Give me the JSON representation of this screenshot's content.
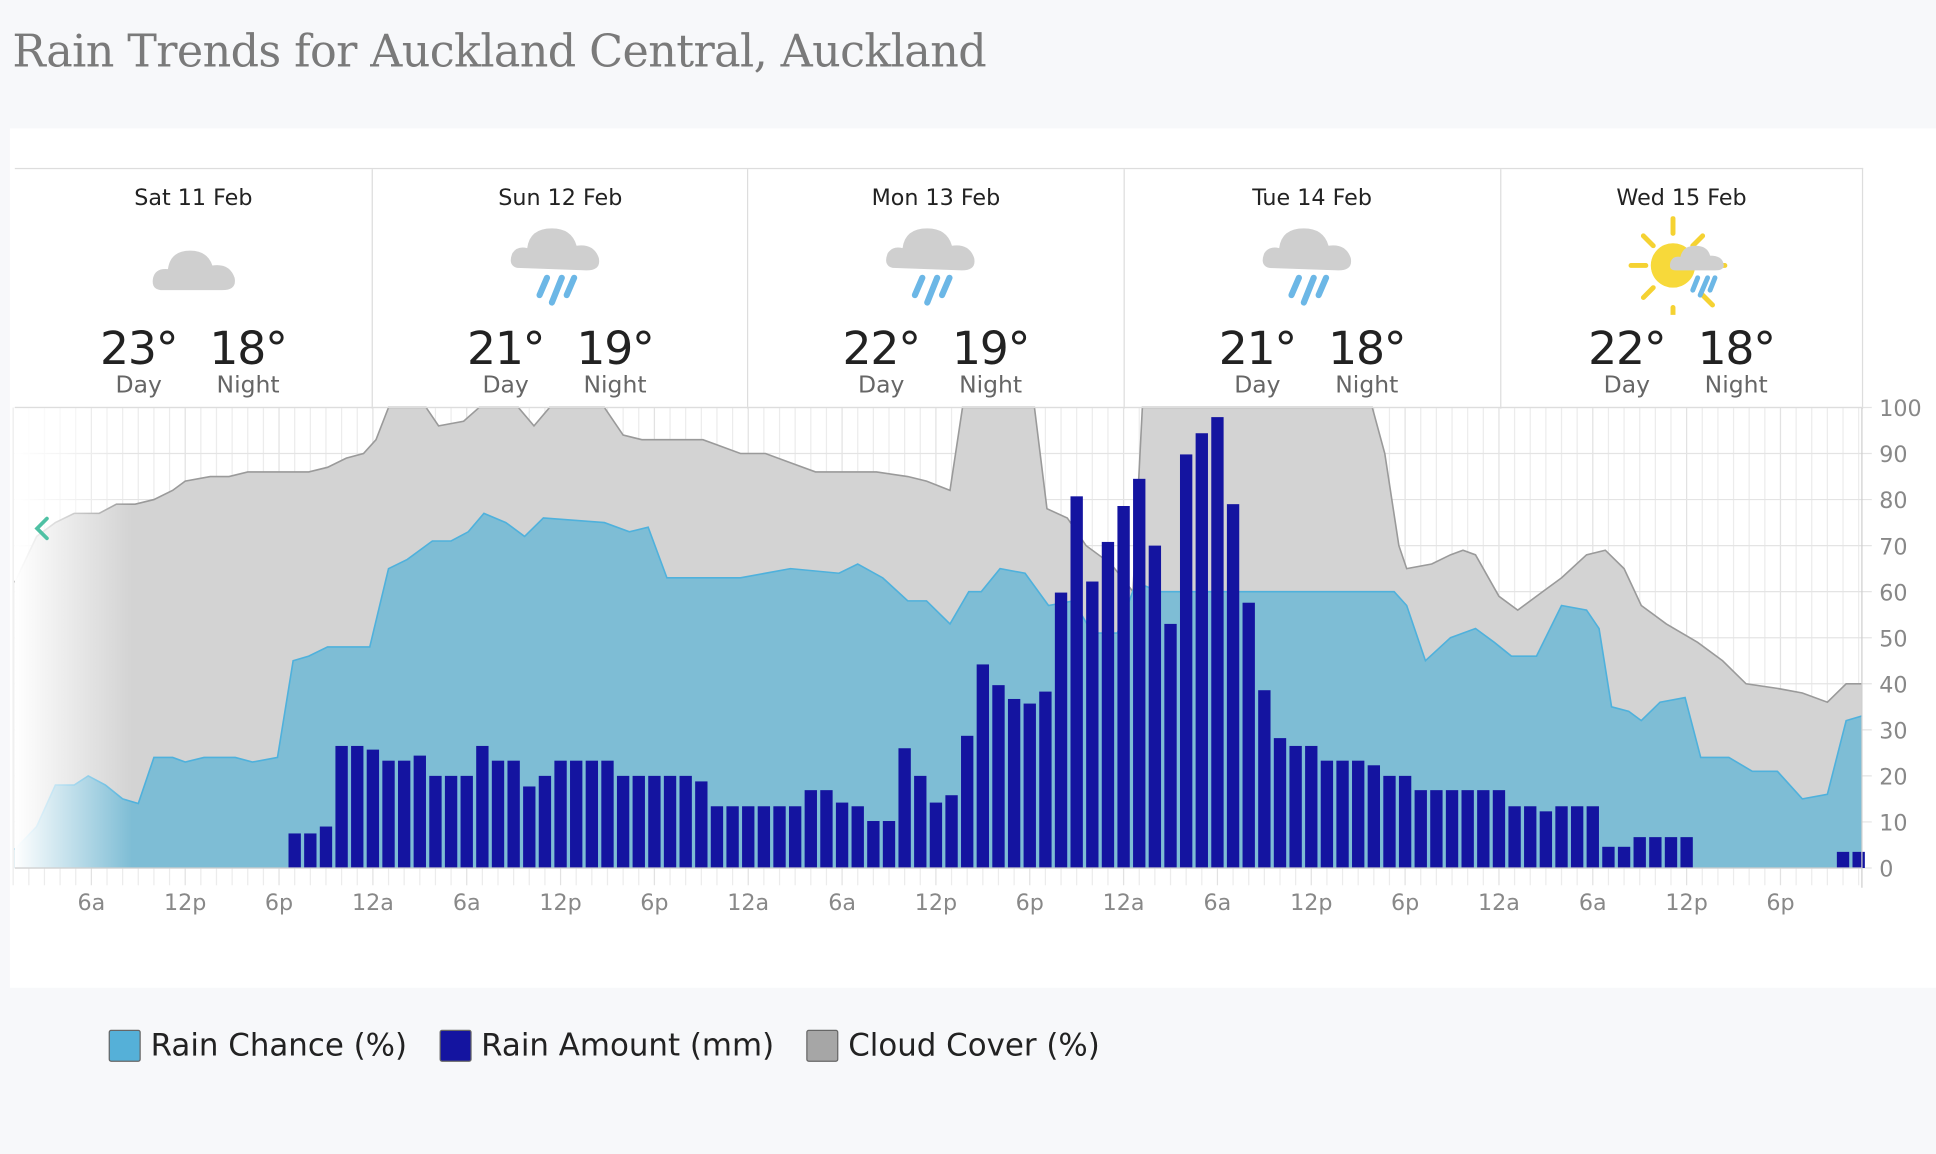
{
  "title": "Rain Trends for Auckland Central, Auckland",
  "days": [
    {
      "name": "Sat 11 Feb",
      "icon": "cloud-icon",
      "day_temp": "23°",
      "night_temp": "18°",
      "day_label": "Day",
      "night_label": "Night"
    },
    {
      "name": "Sun 12 Feb",
      "icon": "cloud-rain-icon",
      "day_temp": "21°",
      "night_temp": "19°",
      "day_label": "Day",
      "night_label": "Night"
    },
    {
      "name": "Mon 13 Feb",
      "icon": "cloud-rain-icon",
      "day_temp": "22°",
      "night_temp": "19°",
      "day_label": "Day",
      "night_label": "Night"
    },
    {
      "name": "Tue 14 Feb",
      "icon": "cloud-rain-icon",
      "day_temp": "21°",
      "night_temp": "18°",
      "day_label": "Day",
      "night_label": "Night"
    },
    {
      "name": "Wed 15 Feb",
      "icon": "sun-cloud-rain-icon",
      "day_temp": "22°",
      "night_temp": "18°",
      "day_label": "Day",
      "night_label": "Night"
    }
  ],
  "nav": {
    "prev_icon": "chevron-left-icon"
  },
  "legend": [
    {
      "label": "Rain Chance (%)",
      "color": "#55b0d8"
    },
    {
      "label": "Rain Amount (mm)",
      "color": "#1414a0"
    },
    {
      "label": "Cloud Cover (%)",
      "color": "#a6a6a6"
    }
  ],
  "chart_data": {
    "type": "area+bar",
    "x_range": [
      [
        "Sat",
        1.1
      ],
      [
        "Thu",
        -0.8
      ]
    ],
    "ylim": [
      0,
      100
    ],
    "y_ticks": [
      "0",
      "10",
      "20",
      "30",
      "40",
      "50",
      "60",
      "70",
      "80",
      "90",
      "100"
    ],
    "x_ticks": [
      [
        "Sat",
        6,
        "6a"
      ],
      [
        "Sat",
        12,
        "12p"
      ],
      [
        "Sat",
        18,
        "6p"
      ],
      [
        "Sun",
        0,
        "12a"
      ],
      [
        "Sun",
        6,
        "6a"
      ],
      [
        "Sun",
        12,
        "12p"
      ],
      [
        "Sun",
        18,
        "6p"
      ],
      [
        "Mon",
        0,
        "12a"
      ],
      [
        "Mon",
        6,
        "6a"
      ],
      [
        "Mon",
        12,
        "12p"
      ],
      [
        "Mon",
        18,
        "6p"
      ],
      [
        "Tue",
        0,
        "12a"
      ],
      [
        "Tue",
        6,
        "6a"
      ],
      [
        "Tue",
        12,
        "12p"
      ],
      [
        "Tue",
        18,
        "6p"
      ],
      [
        "Wed",
        0,
        "12a"
      ],
      [
        "Wed",
        6,
        "6a"
      ],
      [
        "Wed",
        12,
        "12p"
      ],
      [
        "Wed",
        18,
        "6p"
      ]
    ],
    "grid": true,
    "series": [
      {
        "name": "Cloud Cover (%)",
        "kind": "area",
        "color": "#a6a6a6",
        "points": [
          [
            "Sat",
            1.1,
            62
          ],
          [
            "Sat",
            2.5,
            72
          ],
          [
            "Sat",
            3.7,
            75
          ],
          [
            "Sat",
            4.9,
            77
          ],
          [
            "Sat",
            6.5,
            77
          ],
          [
            "Sat",
            7.6,
            79
          ],
          [
            "Sat",
            8.8,
            79
          ],
          [
            "Sat",
            10,
            80
          ],
          [
            "Sat",
            11.2,
            82
          ],
          [
            "Sat",
            12,
            84
          ],
          [
            "Sat",
            13.6,
            85
          ],
          [
            "Sat",
            14.8,
            85
          ],
          [
            "Sat",
            16,
            86
          ],
          [
            "Sat",
            17.5,
            86
          ],
          [
            "Sat",
            19.9,
            86
          ],
          [
            "Sat",
            21.1,
            87
          ],
          [
            "Sat",
            22.3,
            89
          ],
          [
            "Sat",
            23.4,
            90
          ],
          [
            "Sun",
            0.2,
            93
          ],
          [
            "Sun",
            1,
            100
          ],
          [
            "Sun",
            3.4,
            100
          ],
          [
            "Sun",
            4.2,
            96
          ],
          [
            "Sun",
            5.8,
            97
          ],
          [
            "Sun",
            6.8,
            100
          ],
          [
            "Sun",
            9.3,
            100
          ],
          [
            "Sun",
            10.3,
            96
          ],
          [
            "Sun",
            11.3,
            100
          ],
          [
            "Sun",
            14.8,
            100
          ],
          [
            "Sun",
            16,
            94
          ],
          [
            "Sun",
            17.2,
            93
          ],
          [
            "Sun",
            18.8,
            93
          ],
          [
            "Sun",
            21.1,
            93
          ],
          [
            "Sun",
            21.9,
            92
          ],
          [
            "Sun",
            23.5,
            90
          ],
          [
            "Mon",
            1.1,
            90
          ],
          [
            "Mon",
            2.7,
            88
          ],
          [
            "Mon",
            4.3,
            86
          ],
          [
            "Mon",
            8.2,
            86
          ],
          [
            "Mon",
            10.2,
            85
          ],
          [
            "Mon",
            11.4,
            84
          ],
          [
            "Mon",
            12.9,
            82
          ],
          [
            "Mon",
            13.7,
            100
          ],
          [
            "Mon",
            18.3,
            100
          ],
          [
            "Mon",
            19.1,
            78
          ],
          [
            "Mon",
            20.4,
            76
          ],
          [
            "Mon",
            21.6,
            70
          ],
          [
            "Mon",
            23.2,
            66
          ],
          [
            "Tue",
            0.6,
            60
          ],
          [
            "Tue",
            1.2,
            100
          ],
          [
            "Tue",
            15.9,
            100
          ],
          [
            "Tue",
            16.7,
            90
          ],
          [
            "Tue",
            17.6,
            70
          ],
          [
            "Tue",
            18.1,
            65
          ],
          [
            "Tue",
            19.7,
            66
          ],
          [
            "Tue",
            20.9,
            68
          ],
          [
            "Tue",
            21.7,
            69
          ],
          [
            "Tue",
            22.5,
            68
          ],
          [
            "Wed",
            0,
            59
          ],
          [
            "Wed",
            1.2,
            56
          ],
          [
            "Wed",
            2.8,
            60
          ],
          [
            "Wed",
            4,
            63
          ],
          [
            "Wed",
            5.6,
            68
          ],
          [
            "Wed",
            6.8,
            69
          ],
          [
            "Wed",
            8,
            65
          ],
          [
            "Wed",
            9.1,
            57
          ],
          [
            "Wed",
            10.7,
            53
          ],
          [
            "Wed",
            12.7,
            49
          ],
          [
            "Wed",
            14.3,
            45
          ],
          [
            "Wed",
            15.8,
            40
          ],
          [
            "Wed",
            17.8,
            39
          ],
          [
            "Wed",
            19.4,
            38
          ],
          [
            "Wed",
            21,
            36
          ],
          [
            "Wed",
            22.2,
            40
          ],
          [
            "Wed",
            23.2,
            40
          ]
        ]
      },
      {
        "name": "Rain Chance (%)",
        "kind": "area",
        "color": "#55b0d8",
        "points": [
          [
            "Sat",
            1.1,
            4
          ],
          [
            "Sat",
            2.5,
            9
          ],
          [
            "Sat",
            3.7,
            18
          ],
          [
            "Sat",
            4.9,
            18
          ],
          [
            "Sat",
            5.8,
            20
          ],
          [
            "Sat",
            6.9,
            18
          ],
          [
            "Sat",
            8,
            15
          ],
          [
            "Sat",
            9,
            14
          ],
          [
            "Sat",
            10,
            24
          ],
          [
            "Sat",
            11.2,
            24
          ],
          [
            "Sat",
            12,
            23
          ],
          [
            "Sat",
            13.2,
            24
          ],
          [
            "Sat",
            15.2,
            24
          ],
          [
            "Sat",
            16.3,
            23
          ],
          [
            "Sat",
            17.9,
            24
          ],
          [
            "Sat",
            18.9,
            45
          ],
          [
            "Sat",
            19.9,
            46
          ],
          [
            "Sat",
            21.1,
            48
          ],
          [
            "Sat",
            23.8,
            48
          ],
          [
            "Sun",
            1,
            65
          ],
          [
            "Sun",
            2.2,
            67
          ],
          [
            "Sun",
            3.8,
            71
          ],
          [
            "Sun",
            5,
            71
          ],
          [
            "Sun",
            6.1,
            73
          ],
          [
            "Sun",
            7.1,
            77
          ],
          [
            "Sun",
            8.5,
            75
          ],
          [
            "Sun",
            9.7,
            72
          ],
          [
            "Sun",
            10.9,
            76
          ],
          [
            "Sun",
            14.8,
            75
          ],
          [
            "Sun",
            16.4,
            73
          ],
          [
            "Sun",
            17.6,
            74
          ],
          [
            "Sun",
            18.8,
            63
          ],
          [
            "Sun",
            23.5,
            63
          ],
          [
            "Mon",
            2.7,
            65
          ],
          [
            "Mon",
            5.8,
            64
          ],
          [
            "Mon",
            7,
            66
          ],
          [
            "Mon",
            8.6,
            63
          ],
          [
            "Mon",
            10.2,
            58
          ],
          [
            "Mon",
            11.4,
            58
          ],
          [
            "Mon",
            12.9,
            53
          ],
          [
            "Mon",
            14.1,
            60
          ],
          [
            "Mon",
            14.9,
            60
          ],
          [
            "Mon",
            16.1,
            65
          ],
          [
            "Mon",
            17.7,
            64
          ],
          [
            "Mon",
            19.2,
            57
          ],
          [
            "Mon",
            20.8,
            58
          ],
          [
            "Mon",
            22,
            51
          ],
          [
            "Mon",
            23.6,
            51
          ],
          [
            "Tue",
            0.8,
            62
          ],
          [
            "Tue",
            2.3,
            60
          ],
          [
            "Tue",
            3.9,
            60
          ],
          [
            "Tue",
            17.3,
            60
          ],
          [
            "Tue",
            18.1,
            57
          ],
          [
            "Tue",
            19.3,
            45
          ],
          [
            "Tue",
            20.9,
            50
          ],
          [
            "Tue",
            22.5,
            52
          ],
          [
            "Tue",
            23.7,
            49
          ],
          [
            "Wed",
            0.8,
            46
          ],
          [
            "Wed",
            2.4,
            46
          ],
          [
            "Wed",
            4,
            57
          ],
          [
            "Wed",
            5.6,
            56
          ],
          [
            "Wed",
            6.4,
            52
          ],
          [
            "Wed",
            7.2,
            35
          ],
          [
            "Wed",
            8.3,
            34
          ],
          [
            "Wed",
            9.1,
            32
          ],
          [
            "Wed",
            10.3,
            36
          ],
          [
            "Wed",
            11.9,
            37
          ],
          [
            "Wed",
            12.9,
            24
          ],
          [
            "Wed",
            14.7,
            24
          ],
          [
            "Wed",
            16.2,
            21
          ],
          [
            "Wed",
            17.8,
            21
          ],
          [
            "Wed",
            19.4,
            15
          ],
          [
            "Wed",
            21,
            16
          ],
          [
            "Wed",
            22.2,
            32
          ],
          [
            "Wed",
            23.2,
            33
          ]
        ]
      },
      {
        "name": "Rain Amount (mm)",
        "kind": "bar",
        "color": "#1414a0",
        "start": [
          "Sat",
          19
        ],
        "interval_hours": 1,
        "values": [
          7.5,
          7.5,
          9,
          26.5,
          26.5,
          25.7,
          23.3,
          23.3,
          24.4,
          20,
          20,
          20,
          26.5,
          23.3,
          23.3,
          17.7,
          20,
          23.3,
          23.3,
          23.3,
          23.3,
          20,
          20,
          20,
          20,
          20,
          18.8,
          13.4,
          13.4,
          13.4,
          13.4,
          13.4,
          13.4,
          16.9,
          16.9,
          14.2,
          13.4,
          10.2,
          10.2,
          26,
          20,
          14.2,
          15.8,
          28.7,
          44.2,
          39.7,
          36.7,
          35.7,
          38.3,
          59.8,
          80.7,
          62.2,
          70.8,
          78.6,
          84.5,
          70,
          53,
          89.8,
          94.4,
          97.9,
          79,
          57.6,
          38.6,
          28.2,
          26.5,
          26.5,
          23.3,
          23.3,
          23.3,
          22.3,
          20,
          20,
          16.9,
          16.9,
          16.9,
          16.9,
          16.9,
          16.9,
          13.4,
          13.4,
          12.3,
          13.4,
          13.4,
          13.4,
          4.6,
          4.6,
          6.7,
          6.7,
          6.7,
          6.7,
          0,
          0,
          0,
          0,
          0,
          0,
          0,
          0,
          0,
          3.5,
          3.5
        ]
      }
    ]
  }
}
